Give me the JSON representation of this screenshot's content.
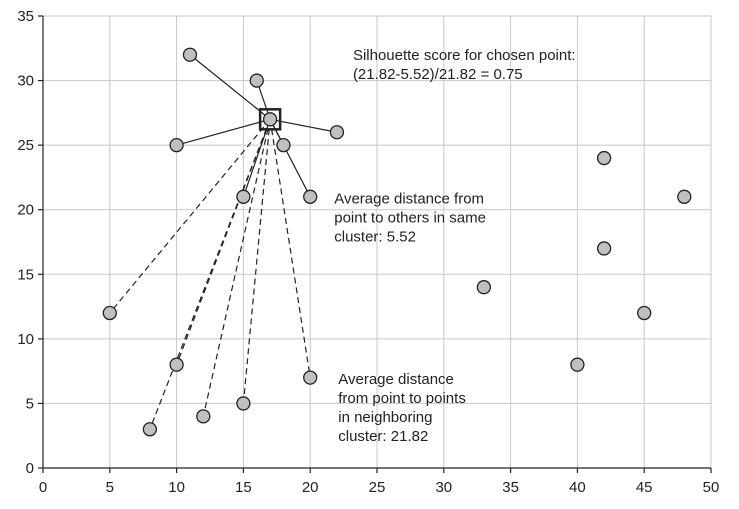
{
  "chart_data": {
    "type": "scatter",
    "title": "",
    "xlabel": "",
    "ylabel": "",
    "xlim": [
      0,
      50
    ],
    "ylim": [
      0,
      35
    ],
    "xticks": [
      0,
      5,
      10,
      15,
      20,
      25,
      30,
      35,
      40,
      45,
      50
    ],
    "yticks": [
      0,
      5,
      10,
      15,
      20,
      25,
      30,
      35
    ],
    "grid": true,
    "chosen_point": {
      "x": 17,
      "y": 27
    },
    "same_cluster_points": [
      {
        "x": 11,
        "y": 32
      },
      {
        "x": 16,
        "y": 30
      },
      {
        "x": 10,
        "y": 25
      },
      {
        "x": 22,
        "y": 26
      },
      {
        "x": 18,
        "y": 25
      },
      {
        "x": 15,
        "y": 21
      },
      {
        "x": 20,
        "y": 21
      }
    ],
    "neighboring_cluster_points": [
      {
        "x": 5,
        "y": 12
      },
      {
        "x": 10,
        "y": 8
      },
      {
        "x": 8,
        "y": 3
      },
      {
        "x": 12,
        "y": 4
      },
      {
        "x": 15,
        "y": 5
      },
      {
        "x": 20,
        "y": 7
      }
    ],
    "other_points": [
      {
        "x": 42,
        "y": 24
      },
      {
        "x": 48,
        "y": 21
      },
      {
        "x": 42,
        "y": 17
      },
      {
        "x": 33,
        "y": 14
      },
      {
        "x": 45,
        "y": 12
      },
      {
        "x": 40,
        "y": 8
      }
    ],
    "annotations": [
      {
        "x": 23.2,
        "y": 31.6,
        "lines": [
          "Silhouette score for chosen point:",
          "(21.82-5.52)/21.82 = 0.75"
        ]
      },
      {
        "x": 21.8,
        "y": 20.5,
        "lines": [
          "Average distance from",
          "point to others in same",
          "cluster: 5.52"
        ]
      },
      {
        "x": 22.1,
        "y": 6.5,
        "lines": [
          "Average distance",
          "from point to points",
          "in neighboring",
          "cluster: 21.82"
        ]
      }
    ],
    "colors": {
      "point_fill": "#c0c0c0",
      "point_stroke": "#222222",
      "line": "#222222",
      "grid": "#c8c8c8"
    }
  }
}
